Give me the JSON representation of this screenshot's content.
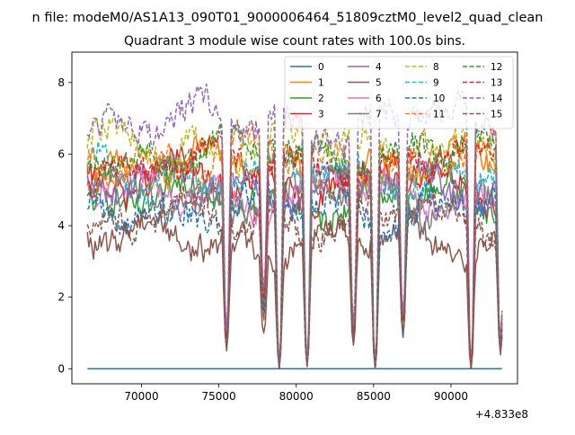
{
  "chart_data": {
    "type": "line",
    "suptitle": "n file: modeM0/AS1A13_090T01_9000006464_51809cztM0_level2_quad_clean",
    "title": "Quadrant 3 module wise count rates with 100.0s bins.",
    "xlabel": "",
    "ylabel": "",
    "x_offset_label": "+4.833e8",
    "xlim": [
      65500,
      94300
    ],
    "ylim": [
      -0.42,
      8.85
    ],
    "x_ticks": [
      70000,
      75000,
      80000,
      85000,
      90000
    ],
    "x_tick_labels": [
      "70000",
      "75000",
      "80000",
      "85000",
      "90000"
    ],
    "y_ticks": [
      0,
      2,
      4,
      6,
      8
    ],
    "y_tick_labels": [
      "0",
      "2",
      "4",
      "6",
      "8"
    ],
    "x_range": [
      66500,
      93300
    ],
    "legend": {
      "placement": "top-right",
      "columns": 4
    },
    "series": [
      {
        "name": "0",
        "color": "#1f77b4",
        "dash": "solid",
        "level": 0.0
      },
      {
        "name": "1",
        "color": "#ff7f0e",
        "dash": "solid",
        "level": 5.6
      },
      {
        "name": "2",
        "color": "#2ca02c",
        "dash": "solid",
        "level": 4.7
      },
      {
        "name": "3",
        "color": "#d62728",
        "dash": "solid",
        "level": 5.2
      },
      {
        "name": "4",
        "color": "#9467bd",
        "dash": "solid",
        "level": 5.1
      },
      {
        "name": "5",
        "color": "#8c564b",
        "dash": "solid",
        "level": 3.6
      },
      {
        "name": "6",
        "color": "#e377c2",
        "dash": "solid",
        "level": 4.9
      },
      {
        "name": "7",
        "color": "#7f7f7f",
        "dash": "solid",
        "level": 4.8
      },
      {
        "name": "8",
        "color": "#bcbd22",
        "dash": "dashed",
        "level": 6.3
      },
      {
        "name": "9",
        "color": "#17becf",
        "dash": "dashed",
        "level": 5.5
      },
      {
        "name": "10",
        "color": "#1f77b4",
        "dash": "dashed",
        "level": 4.5
      },
      {
        "name": "11",
        "color": "#ff7f0e",
        "dash": "dashed",
        "level": 5.9
      },
      {
        "name": "12",
        "color": "#2ca02c",
        "dash": "dashed",
        "level": 6.0
      },
      {
        "name": "13",
        "color": "#d62728",
        "dash": "dashed",
        "level": 5.7
      },
      {
        "name": "14",
        "color": "#9467bd",
        "dash": "dashed",
        "level": 6.9
      },
      {
        "name": "15",
        "color": "#8c564b",
        "dash": "dashed",
        "level": 4.2
      }
    ],
    "dropouts": [
      [
        75500,
        0.8
      ],
      [
        77900,
        1.8
      ],
      [
        78900,
        0.0
      ],
      [
        80700,
        0.1
      ],
      [
        83700,
        1.0
      ],
      [
        85100,
        0.0
      ],
      [
        86900,
        1.2
      ],
      [
        91300,
        0.0
      ],
      [
        93200,
        0.6
      ]
    ],
    "grid": false
  }
}
